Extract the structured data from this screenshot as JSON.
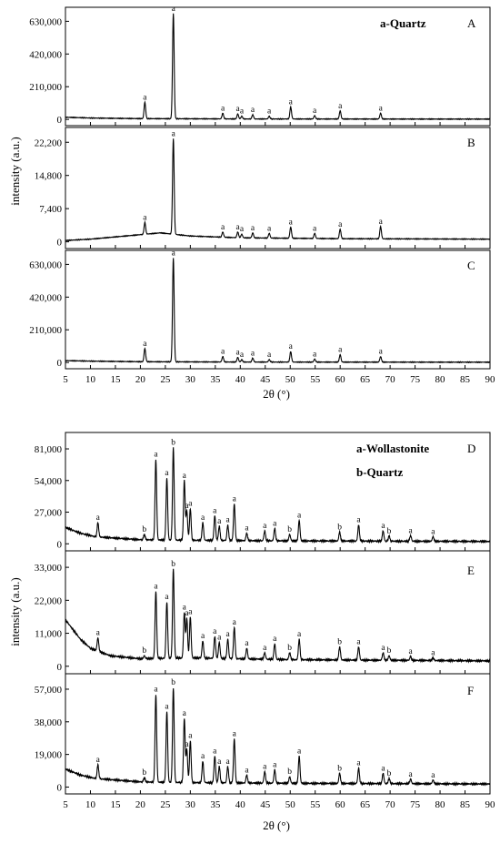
{
  "figures": [
    {
      "ylabel": "intensity (a.u.)",
      "xlabel": "2θ (°)",
      "legend": [
        "a-Quartz"
      ],
      "xlim": [
        5,
        90
      ],
      "xticks": [
        "5",
        "10",
        "15",
        "20",
        "25",
        "30",
        "35",
        "40",
        "45",
        "50",
        "55",
        "60",
        "65",
        "70",
        "75",
        "80",
        "85",
        "90"
      ]
    },
    {
      "ylabel": "intensity (a.u.)",
      "xlabel": "2θ (°)",
      "legend": [
        "a-Wollastonite",
        "b-Quartz"
      ],
      "xlim": [
        5,
        90
      ],
      "xticks": [
        "5",
        "10",
        "15",
        "20",
        "25",
        "30",
        "35",
        "40",
        "45",
        "50",
        "55",
        "60",
        "65",
        "70",
        "75",
        "80",
        "85",
        "90"
      ]
    }
  ],
  "chart_data": [
    {
      "type": "line",
      "panel": "A",
      "figure": 0,
      "grid": false,
      "ylim": [
        -40000,
        720000
      ],
      "yticks": [
        0,
        210000,
        420000,
        630000
      ],
      "ytick_labels": [
        "0",
        "210,000",
        "420,000",
        "630,000"
      ],
      "baseline": [
        [
          5,
          14000
        ],
        [
          10,
          9000
        ],
        [
          20,
          5000
        ],
        [
          40,
          3000
        ],
        [
          90,
          2000
        ]
      ],
      "peaks": [
        {
          "x": 20.9,
          "y": 110000,
          "label": "a"
        },
        {
          "x": 26.6,
          "y": 680000,
          "label": "a"
        },
        {
          "x": 36.5,
          "y": 40000,
          "label": "a"
        },
        {
          "x": 39.5,
          "y": 35000,
          "label": "a"
        },
        {
          "x": 40.3,
          "y": 20000,
          "label": "a"
        },
        {
          "x": 42.5,
          "y": 30000,
          "label": "a"
        },
        {
          "x": 45.8,
          "y": 20000,
          "label": "a"
        },
        {
          "x": 50.1,
          "y": 80000,
          "label": "a"
        },
        {
          "x": 54.9,
          "y": 25000,
          "label": "a"
        },
        {
          "x": 60.0,
          "y": 55000,
          "label": "a"
        },
        {
          "x": 68.1,
          "y": 40000,
          "label": "a"
        }
      ]
    },
    {
      "type": "line",
      "panel": "B",
      "figure": 0,
      "grid": false,
      "ylim": [
        -1500,
        25500
      ],
      "yticks": [
        0,
        7400,
        14800,
        22200
      ],
      "ytick_labels": [
        "0",
        "7,400",
        "14,800",
        "22,200"
      ],
      "baseline": [
        [
          5,
          300
        ],
        [
          10,
          600
        ],
        [
          15,
          1100
        ],
        [
          20,
          1600
        ],
        [
          24,
          2000
        ],
        [
          30,
          1300
        ],
        [
          40,
          900
        ],
        [
          60,
          700
        ],
        [
          90,
          600
        ]
      ],
      "peaks": [
        {
          "x": 20.9,
          "y": 4300,
          "label": "a"
        },
        {
          "x": 26.6,
          "y": 23000,
          "label": "a"
        },
        {
          "x": 36.5,
          "y": 2200,
          "label": "a"
        },
        {
          "x": 39.5,
          "y": 2200,
          "label": "a"
        },
        {
          "x": 40.3,
          "y": 1700,
          "label": "a"
        },
        {
          "x": 42.5,
          "y": 2000,
          "label": "a"
        },
        {
          "x": 45.8,
          "y": 1900,
          "label": "a"
        },
        {
          "x": 50.1,
          "y": 3300,
          "label": "a"
        },
        {
          "x": 54.9,
          "y": 1900,
          "label": "a"
        },
        {
          "x": 60.0,
          "y": 2800,
          "label": "a"
        },
        {
          "x": 68.1,
          "y": 3400,
          "label": "a"
        }
      ]
    },
    {
      "type": "line",
      "panel": "C",
      "figure": 0,
      "grid": false,
      "ylim": [
        -40000,
        720000
      ],
      "yticks": [
        0,
        210000,
        420000,
        630000
      ],
      "ytick_labels": [
        "0",
        "210,000",
        "420,000",
        "630,000"
      ],
      "baseline": [
        [
          5,
          12000
        ],
        [
          10,
          9000
        ],
        [
          20,
          5000
        ],
        [
          40,
          3000
        ],
        [
          90,
          2000
        ]
      ],
      "peaks": [
        {
          "x": 20.9,
          "y": 90000,
          "label": "a"
        },
        {
          "x": 26.6,
          "y": 670000,
          "label": "a"
        },
        {
          "x": 36.5,
          "y": 38000,
          "label": "a"
        },
        {
          "x": 39.5,
          "y": 33000,
          "label": "a"
        },
        {
          "x": 40.3,
          "y": 18000,
          "label": "a"
        },
        {
          "x": 42.5,
          "y": 28000,
          "label": "a"
        },
        {
          "x": 45.8,
          "y": 18000,
          "label": "a"
        },
        {
          "x": 50.1,
          "y": 70000,
          "label": "a"
        },
        {
          "x": 54.9,
          "y": 22000,
          "label": "a"
        },
        {
          "x": 60.0,
          "y": 50000,
          "label": "a"
        },
        {
          "x": 68.1,
          "y": 38000,
          "label": "a"
        }
      ]
    },
    {
      "type": "line",
      "panel": "D",
      "figure": 1,
      "grid": false,
      "ylim": [
        -6000,
        95000
      ],
      "yticks": [
        0,
        27000,
        54000,
        81000
      ],
      "ytick_labels": [
        "0",
        "27,000",
        "54,000",
        "81,000"
      ],
      "baseline": [
        [
          5,
          14000
        ],
        [
          8,
          9000
        ],
        [
          11,
          6000
        ],
        [
          20,
          3500
        ],
        [
          30,
          3000
        ],
        [
          50,
          2500
        ],
        [
          90,
          2000
        ]
      ],
      "peaks": [
        {
          "x": 11.5,
          "y": 18000,
          "label": "a"
        },
        {
          "x": 20.8,
          "y": 8000,
          "label": "b"
        },
        {
          "x": 23.1,
          "y": 72000,
          "label": "a"
        },
        {
          "x": 25.3,
          "y": 56000,
          "label": "a"
        },
        {
          "x": 26.6,
          "y": 82000,
          "label": "b"
        },
        {
          "x": 28.8,
          "y": 54000,
          "label": "a"
        },
        {
          "x": 29.3,
          "y": 28000,
          "label": "a"
        },
        {
          "x": 30.0,
          "y": 30000,
          "label": "a"
        },
        {
          "x": 32.5,
          "y": 18000,
          "label": "a"
        },
        {
          "x": 34.9,
          "y": 24000,
          "label": "a"
        },
        {
          "x": 35.8,
          "y": 15000,
          "label": "a"
        },
        {
          "x": 37.5,
          "y": 16000,
          "label": "a"
        },
        {
          "x": 38.8,
          "y": 34000,
          "label": "a"
        },
        {
          "x": 41.3,
          "y": 9000,
          "label": "a"
        },
        {
          "x": 44.9,
          "y": 11000,
          "label": "a"
        },
        {
          "x": 46.9,
          "y": 13000,
          "label": "a"
        },
        {
          "x": 49.9,
          "y": 8000,
          "label": "b"
        },
        {
          "x": 51.8,
          "y": 20000,
          "label": "a"
        },
        {
          "x": 59.9,
          "y": 10000,
          "label": "b"
        },
        {
          "x": 63.7,
          "y": 16000,
          "label": "a"
        },
        {
          "x": 68.6,
          "y": 11000,
          "label": "a"
        },
        {
          "x": 69.8,
          "y": 6500,
          "label": "b"
        },
        {
          "x": 74.1,
          "y": 7000,
          "label": "a"
        },
        {
          "x": 78.6,
          "y": 6000,
          "label": "a"
        }
      ]
    },
    {
      "type": "line",
      "panel": "E",
      "figure": 1,
      "grid": false,
      "ylim": [
        -2500,
        38500
      ],
      "yticks": [
        0,
        11000,
        22000,
        33000
      ],
      "ytick_labels": [
        "0",
        "11,000",
        "22,000",
        "33,000"
      ],
      "baseline": [
        [
          5,
          15500
        ],
        [
          8,
          9000
        ],
        [
          10,
          6000
        ],
        [
          14,
          3500
        ],
        [
          20,
          2500
        ],
        [
          30,
          2800
        ],
        [
          50,
          2200
        ],
        [
          90,
          1800
        ]
      ],
      "peaks": [
        {
          "x": 11.5,
          "y": 9500,
          "label": "a"
        },
        {
          "x": 20.8,
          "y": 3500,
          "label": "b"
        },
        {
          "x": 23.1,
          "y": 25000,
          "label": "a"
        },
        {
          "x": 25.3,
          "y": 21500,
          "label": "a"
        },
        {
          "x": 26.6,
          "y": 32500,
          "label": "b"
        },
        {
          "x": 28.8,
          "y": 18000,
          "label": "a"
        },
        {
          "x": 29.3,
          "y": 16000,
          "label": "a"
        },
        {
          "x": 30.0,
          "y": 16500,
          "label": "a"
        },
        {
          "x": 32.5,
          "y": 8500,
          "label": "a"
        },
        {
          "x": 34.9,
          "y": 10000,
          "label": "a"
        },
        {
          "x": 35.8,
          "y": 8000,
          "label": "a"
        },
        {
          "x": 37.5,
          "y": 9000,
          "label": "a"
        },
        {
          "x": 38.8,
          "y": 13000,
          "label": "a"
        },
        {
          "x": 41.3,
          "y": 6000,
          "label": "a"
        },
        {
          "x": 44.9,
          "y": 4500,
          "label": "a"
        },
        {
          "x": 46.9,
          "y": 7500,
          "label": "a"
        },
        {
          "x": 49.9,
          "y": 4500,
          "label": "b"
        },
        {
          "x": 51.8,
          "y": 9000,
          "label": "a"
        },
        {
          "x": 59.9,
          "y": 6500,
          "label": "b"
        },
        {
          "x": 63.7,
          "y": 6500,
          "label": "a"
        },
        {
          "x": 68.6,
          "y": 4500,
          "label": "a"
        },
        {
          "x": 69.8,
          "y": 3500,
          "label": "b"
        },
        {
          "x": 74.1,
          "y": 3200,
          "label": "a"
        },
        {
          "x": 78.6,
          "y": 2800,
          "label": "a"
        }
      ]
    },
    {
      "type": "line",
      "panel": "F",
      "figure": 1,
      "grid": false,
      "ylim": [
        -4000,
        66000
      ],
      "yticks": [
        0,
        19000,
        38000,
        57000
      ],
      "ytick_labels": [
        "0",
        "19,000",
        "38,000",
        "57,000"
      ],
      "baseline": [
        [
          5,
          10500
        ],
        [
          8,
          7000
        ],
        [
          11,
          5000
        ],
        [
          20,
          3000
        ],
        [
          30,
          2600
        ],
        [
          50,
          2200
        ],
        [
          90,
          1800
        ]
      ],
      "peaks": [
        {
          "x": 11.5,
          "y": 13000,
          "label": "a"
        },
        {
          "x": 20.8,
          "y": 5500,
          "label": "b"
        },
        {
          "x": 23.1,
          "y": 54000,
          "label": "a"
        },
        {
          "x": 25.3,
          "y": 44000,
          "label": "a"
        },
        {
          "x": 26.6,
          "y": 58000,
          "label": "b"
        },
        {
          "x": 28.8,
          "y": 40000,
          "label": "a"
        },
        {
          "x": 29.3,
          "y": 22000,
          "label": "a"
        },
        {
          "x": 30.0,
          "y": 27000,
          "label": "a"
        },
        {
          "x": 32.5,
          "y": 15000,
          "label": "a"
        },
        {
          "x": 34.9,
          "y": 18000,
          "label": "a"
        },
        {
          "x": 35.8,
          "y": 12000,
          "label": "a"
        },
        {
          "x": 37.5,
          "y": 12000,
          "label": "a"
        },
        {
          "x": 38.8,
          "y": 28000,
          "label": "a"
        },
        {
          "x": 41.3,
          "y": 7000,
          "label": "a"
        },
        {
          "x": 44.9,
          "y": 9000,
          "label": "a"
        },
        {
          "x": 46.9,
          "y": 10000,
          "label": "a"
        },
        {
          "x": 49.9,
          "y": 6000,
          "label": "b"
        },
        {
          "x": 51.8,
          "y": 18000,
          "label": "a"
        },
        {
          "x": 59.9,
          "y": 8000,
          "label": "b"
        },
        {
          "x": 63.7,
          "y": 11000,
          "label": "a"
        },
        {
          "x": 68.6,
          "y": 8000,
          "label": "a"
        },
        {
          "x": 69.8,
          "y": 5000,
          "label": "b"
        },
        {
          "x": 74.1,
          "y": 4500,
          "label": "a"
        },
        {
          "x": 78.6,
          "y": 4000,
          "label": "a"
        }
      ]
    }
  ]
}
